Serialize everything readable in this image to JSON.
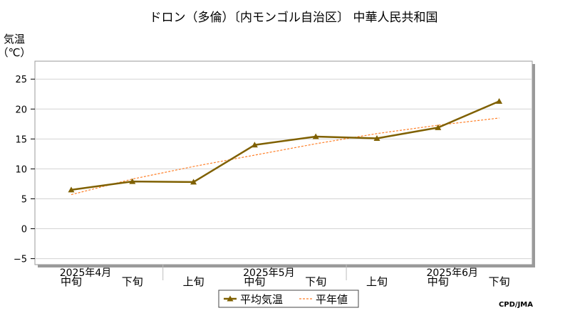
{
  "chart_data": {
    "type": "line",
    "title": "ドロン（多倫）〔内モンゴル自治区〕 中華人民共和国",
    "ylabel": "気温",
    "yunit": "（℃）",
    "ylim": [
      -6,
      28
    ],
    "yticks": [
      25,
      20,
      15,
      10,
      5,
      0,
      -5
    ],
    "ytick_labels": [
      "25",
      "20",
      "15",
      "10",
      "5",
      "0",
      "−5"
    ],
    "grid": true,
    "categories": [
      "中旬",
      "下旬",
      "上旬",
      "中旬",
      "下旬",
      "上旬",
      "中旬",
      "下旬"
    ],
    "month_labels": [
      {
        "label": "2025年4月",
        "index": 0
      },
      {
        "label": "2025年5月",
        "index": 3
      },
      {
        "label": "2025年6月",
        "index": 6
      }
    ],
    "series": [
      {
        "name": "平均気温",
        "color": "#7f6000",
        "style": "solid",
        "marker": "triangle",
        "values": [
          6.5,
          7.9,
          7.8,
          14.0,
          15.4,
          15.1,
          16.9,
          21.3
        ]
      },
      {
        "name": "平年値",
        "color": "#ff7f27",
        "style": "dashed",
        "marker": "none",
        "values": [
          5.7,
          8.3,
          10.4,
          12.3,
          14.2,
          15.9,
          17.3,
          18.5
        ]
      }
    ],
    "legend_position": "bottom-center",
    "credit": "CPD/JMA"
  }
}
